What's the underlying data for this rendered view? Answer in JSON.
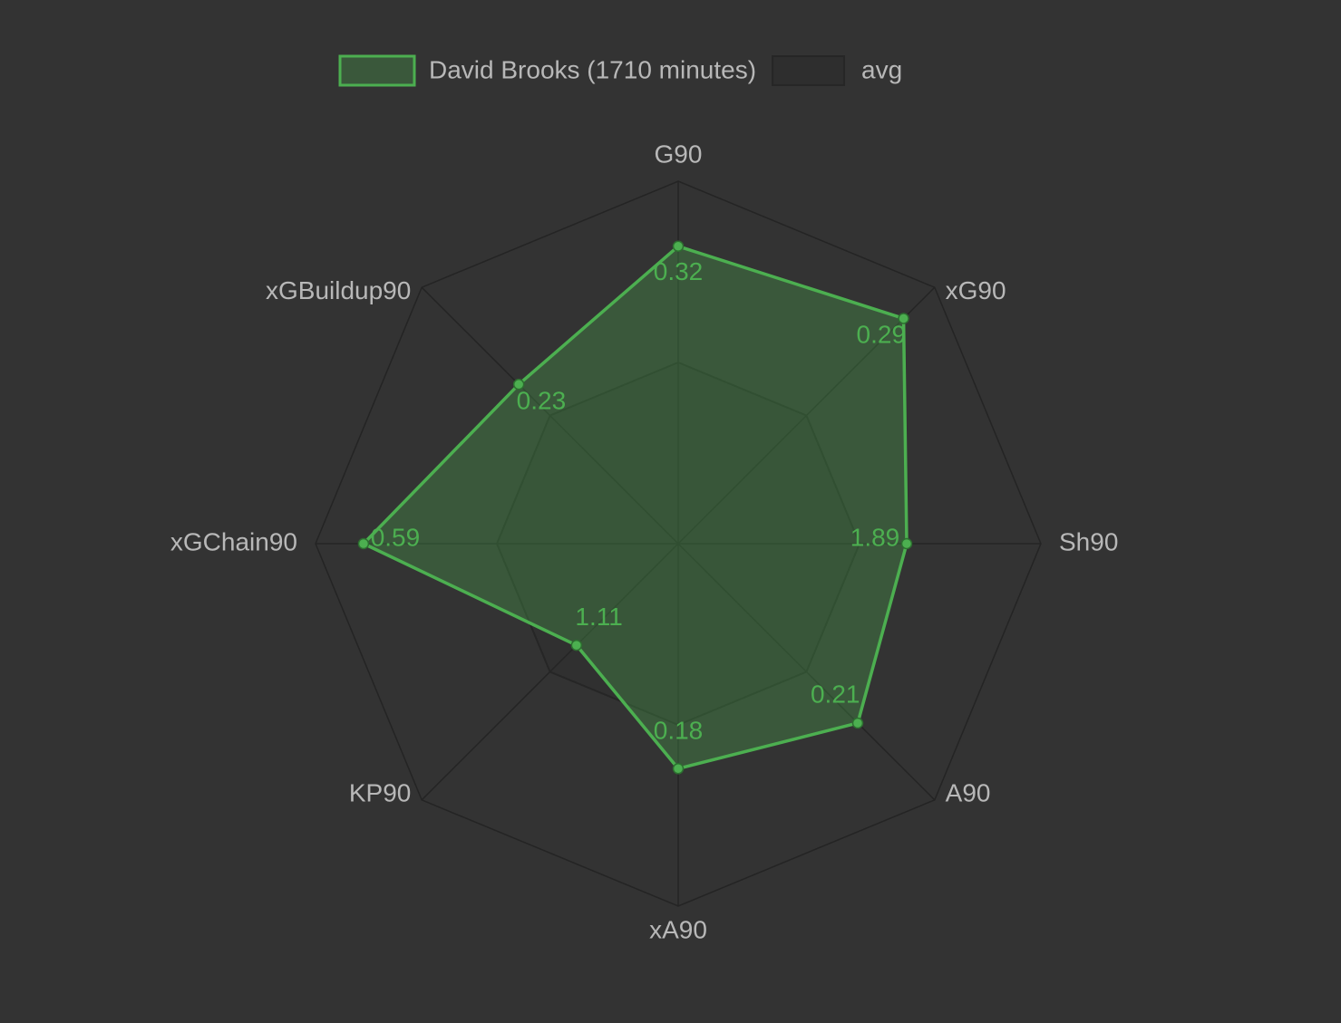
{
  "chart_data": {
    "type": "radar",
    "categories": [
      "G90",
      "xG90",
      "Sh90",
      "A90",
      "xA90",
      "KP90",
      "xGChain90",
      "xGBuildup90"
    ],
    "series": [
      {
        "name": "David Brooks (1710 minutes)",
        "color": "#4caf50",
        "values": [
          0.32,
          0.29,
          1.89,
          0.21,
          0.18,
          1.11,
          0.59,
          0.23
        ]
      },
      {
        "name": "avg",
        "color": "#262626",
        "values": [
          0.195,
          0.165,
          1.5,
          0.15,
          0.145,
          1.4,
          0.34,
          0.185
        ]
      }
    ],
    "rlims": [
      [
        0,
        0.39
      ],
      [
        0,
        0.33
      ],
      [
        0,
        3.0
      ],
      [
        0,
        0.3
      ],
      [
        0,
        0.29
      ],
      [
        0,
        2.8
      ],
      [
        0,
        0.68
      ],
      [
        0,
        0.37
      ]
    ],
    "grid": true,
    "legend": "top"
  }
}
